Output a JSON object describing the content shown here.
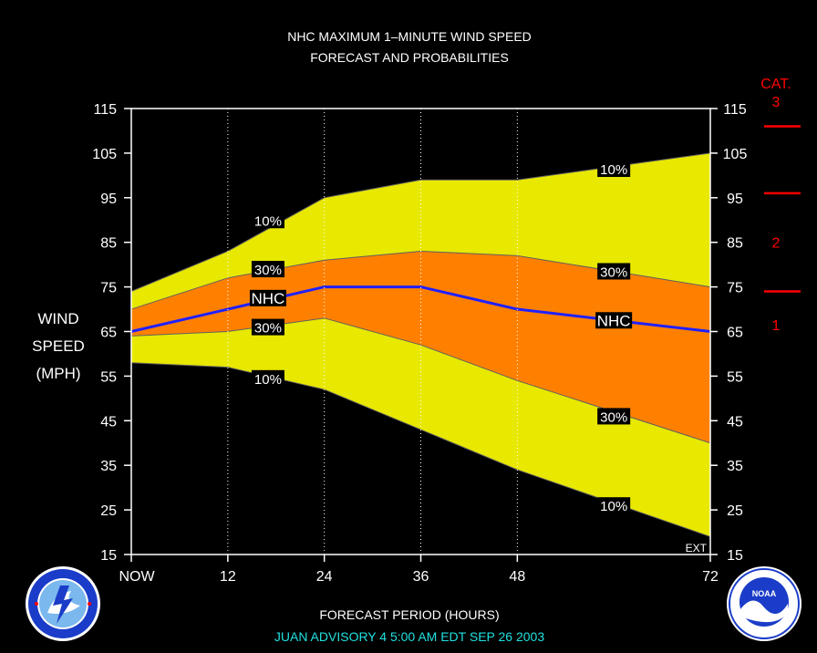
{
  "chart_data": {
    "type": "area",
    "title_line1": "NHC MAXIMUM 1–MINUTE WIND SPEED",
    "title_line2": "FORECAST AND PROBABILITIES",
    "ylabel_lines": [
      "WIND",
      "SPEED",
      "(MPH)"
    ],
    "xlabel": "FORECAST PERIOD (HOURS)",
    "advisory": "JUAN   ADVISORY  4 5:00  AM  EDT  SEP 26 2003",
    "x_ticks": [
      {
        "value": 0,
        "label": "NOW"
      },
      {
        "value": 12,
        "label": "12"
      },
      {
        "value": 24,
        "label": "24"
      },
      {
        "value": 36,
        "label": "36"
      },
      {
        "value": 48,
        "label": "48"
      },
      {
        "value": 72,
        "label": "72"
      }
    ],
    "y_ticks": [
      15,
      25,
      35,
      45,
      55,
      65,
      75,
      85,
      95,
      105,
      115
    ],
    "xlim": [
      0,
      72
    ],
    "ylim": [
      15,
      115
    ],
    "ext_label": "EXT",
    "gridlines_x": [
      12,
      24,
      36,
      48
    ],
    "category_title": "CAT.",
    "categories": [
      {
        "label": "3",
        "threshold": 111
      },
      {
        "label": "2",
        "threshold": 96
      },
      {
        "label": "1",
        "threshold": 74
      }
    ],
    "colors": {
      "outer_band": "#e8e800",
      "inner_band": "#ff8000",
      "nhc_line": "#2020ff",
      "category": "#ff0000",
      "advisory": "#20e0e0"
    },
    "x": [
      0,
      12,
      24,
      36,
      48,
      72
    ],
    "series": [
      {
        "name": "10%",
        "role": "upper_outer",
        "values": [
          74,
          83,
          95,
          99,
          99,
          105
        ]
      },
      {
        "name": "30%",
        "role": "upper_inner",
        "values": [
          70,
          77,
          81,
          83,
          82,
          75
        ]
      },
      {
        "name": "NHC",
        "role": "forecast",
        "values": [
          65,
          70,
          75,
          75,
          70,
          65
        ]
      },
      {
        "name": "30%",
        "role": "lower_inner",
        "values": [
          64,
          65,
          68,
          62,
          54,
          40
        ]
      },
      {
        "name": "10%",
        "role": "lower_outer",
        "values": [
          58,
          57,
          52,
          43,
          34,
          19
        ]
      }
    ],
    "labels": [
      {
        "text": "10%",
        "x": 17,
        "y": 90
      },
      {
        "text": "30%",
        "x": 17,
        "y": 79
      },
      {
        "text": "NHC",
        "x": 17,
        "y": 72.5
      },
      {
        "text": "30%",
        "x": 17,
        "y": 66
      },
      {
        "text": "10%",
        "x": 17,
        "y": 54.5
      },
      {
        "text": "10%",
        "x": 60,
        "y": 101.5
      },
      {
        "text": "30%",
        "x": 60,
        "y": 78.5
      },
      {
        "text": "NHC",
        "x": 60,
        "y": 67.5
      },
      {
        "text": "30%",
        "x": 60,
        "y": 46
      },
      {
        "text": "10%",
        "x": 60,
        "y": 26
      }
    ]
  }
}
